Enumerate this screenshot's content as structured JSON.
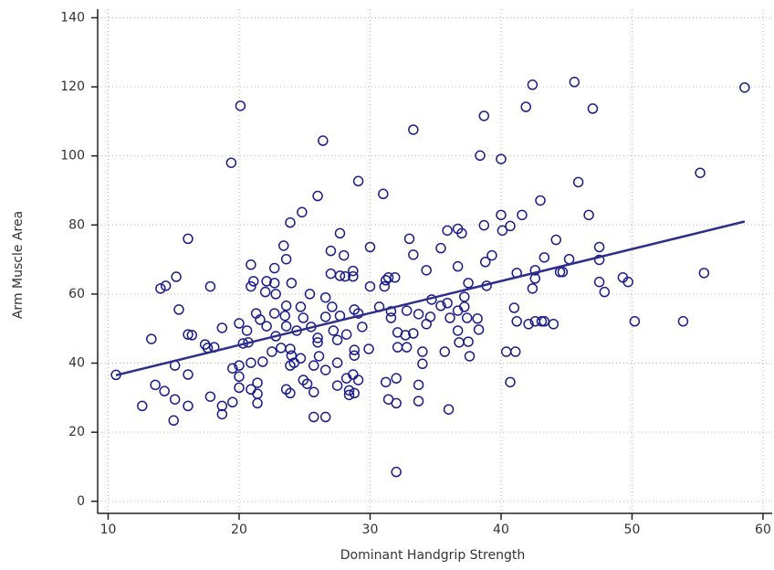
{
  "chart_data": {
    "type": "scatter",
    "x_label": "Dominant Handgrip Strength",
    "y_label": "Arm Muscle Area",
    "xlim": [
      9.2,
      60.7
    ],
    "xticks": [
      10,
      20,
      30,
      40,
      50,
      60
    ],
    "ylim": [
      -3.5,
      142.5
    ],
    "yticks": [
      0,
      20,
      40,
      60,
      80,
      100,
      120,
      140
    ],
    "grid": true,
    "series": [
      {
        "color": "#1c1c8a",
        "x": [
          10.6,
          12.6,
          13.3,
          13.6,
          14.0,
          14.4,
          14.3,
          15.0,
          15.1,
          15.1,
          15.2,
          15.4,
          16.1,
          16.1,
          16.4,
          16.1,
          16.1,
          17.4,
          17.6,
          18.1,
          17.8,
          17.8,
          18.7,
          18.7,
          18.7,
          19.4,
          19.5,
          19.5,
          20.1,
          20.0,
          20.0,
          20.0,
          20.0,
          20.3,
          20.7,
          20.6,
          20.9,
          20.9,
          21.1,
          20.9,
          20.9,
          21.3,
          21.4,
          21.4,
          21.4,
          21.6,
          21.8,
          22.1,
          22.0,
          22.1,
          22.5,
          22.7,
          22.7,
          22.7,
          22.8,
          22.8,
          23.2,
          23.4,
          23.6,
          23.5,
          23.6,
          23.6,
          23.6,
          23.9,
          23.9,
          24.0,
          23.9,
          24.0,
          24.2,
          23.9,
          24.4,
          24.7,
          24.7,
          24.8,
          24.9,
          24.9,
          25.2,
          25.4,
          25.5,
          25.7,
          25.7,
          25.7,
          26.0,
          26.0,
          26.0,
          26.1,
          26.4,
          26.6,
          26.6,
          26.6,
          26.6,
          27.0,
          27.0,
          27.1,
          27.2,
          27.5,
          27.5,
          27.7,
          27.7,
          27.7,
          27.5,
          28.0,
          28.1,
          28.2,
          28.2,
          28.4,
          28.4,
          28.7,
          28.7,
          28.7,
          28.8,
          28.8,
          28.8,
          28.8,
          29.1,
          29.1,
          29.1,
          29.4,
          29.9,
          30.0,
          30.0,
          30.7,
          31.0,
          31.1,
          31.2,
          31.4,
          31.2,
          31.4,
          31.6,
          31.6,
          31.9,
          32.0,
          32.0,
          32.1,
          32.1,
          32.0,
          32.7,
          32.8,
          32.8,
          33.0,
          33.3,
          33.3,
          33.3,
          33.7,
          33.7,
          33.7,
          34.0,
          34.0,
          34.3,
          34.3,
          34.6,
          34.7,
          35.4,
          35.4,
          35.7,
          35.9,
          35.9,
          36.0,
          36.1,
          36.7,
          36.7,
          36.7,
          36.7,
          36.8,
          37.0,
          37.2,
          37.2,
          37.4,
          37.5,
          37.5,
          37.6,
          38.2,
          38.3,
          38.4,
          38.7,
          38.7,
          38.8,
          38.9,
          39.3,
          40.0,
          40.0,
          40.1,
          40.4,
          40.7,
          40.7,
          41.0,
          41.2,
          41.2,
          41.1,
          41.6,
          41.9,
          42.1,
          42.4,
          42.4,
          42.6,
          42.6,
          42.6,
          43.0,
          43.1,
          43.3,
          43.3,
          44.0,
          44.2,
          44.5,
          44.7,
          45.2,
          45.6,
          45.9,
          46.7,
          47.0,
          47.5,
          47.5,
          47.5,
          47.9,
          49.3,
          49.7,
          50.2,
          53.9,
          55.2,
          55.5,
          58.6
        ],
        "y": [
          36.6,
          27.6,
          47.0,
          33.7,
          61.6,
          62.4,
          31.9,
          23.4,
          29.5,
          39.3,
          65.0,
          55.5,
          76.0,
          48.3,
          48.1,
          36.7,
          27.6,
          45.4,
          44.4,
          44.6,
          62.2,
          30.3,
          27.6,
          25.2,
          50.2,
          98.0,
          38.5,
          28.7,
          114.5,
          51.5,
          39.3,
          36.1,
          32.9,
          45.7,
          46.0,
          49.4,
          68.5,
          62.2,
          63.7,
          40.1,
          32.4,
          54.4,
          34.3,
          31.1,
          28.4,
          52.6,
          40.4,
          63.7,
          60.6,
          50.7,
          43.3,
          54.4,
          67.5,
          63.2,
          60.0,
          47.8,
          44.4,
          74.0,
          70.1,
          53.7,
          50.7,
          56.6,
          32.4,
          31.3,
          80.7,
          63.2,
          44.1,
          42.2,
          40.1,
          39.3,
          49.4,
          56.3,
          41.4,
          83.7,
          53.1,
          35.1,
          34.0,
          60.0,
          50.5,
          39.3,
          31.6,
          24.4,
          88.4,
          47.3,
          46.0,
          42.0,
          104.4,
          53.4,
          59.0,
          38.0,
          24.4,
          72.5,
          65.9,
          56.3,
          49.4,
          40.1,
          33.5,
          77.6,
          65.3,
          53.7,
          46.7,
          71.2,
          65.1,
          48.3,
          35.6,
          32.1,
          30.8,
          66.7,
          65.1,
          36.7,
          55.5,
          43.8,
          42.2,
          31.3,
          92.7,
          35.1,
          54.4,
          50.5,
          44.1,
          73.6,
          62.2,
          56.3,
          89.0,
          62.2,
          64.0,
          64.8,
          34.5,
          29.5,
          55.0,
          53.1,
          64.8,
          35.6,
          28.4,
          48.9,
          44.6,
          8.5,
          48.1,
          44.6,
          55.2,
          76.0,
          107.6,
          71.4,
          48.6,
          54.2,
          33.7,
          29.0,
          43.3,
          39.8,
          66.9,
          51.3,
          53.4,
          58.4,
          73.3,
          56.6,
          43.3,
          78.4,
          57.4,
          26.6,
          53.1,
          78.9,
          68.0,
          55.2,
          49.4,
          46.0,
          77.6,
          59.2,
          56.3,
          53.1,
          63.2,
          46.2,
          42.0,
          52.9,
          49.7,
          100.1,
          111.6,
          79.9,
          69.3,
          62.4,
          71.2,
          99.1,
          82.9,
          78.4,
          43.3,
          79.7,
          34.5,
          56.0,
          66.1,
          52.1,
          43.3,
          82.9,
          114.2,
          51.3,
          120.6,
          61.6,
          52.1,
          66.9,
          64.5,
          87.1,
          52.1,
          70.6,
          52.1,
          51.3,
          75.7,
          66.4,
          66.4,
          70.1,
          121.4,
          92.4,
          82.9,
          113.7,
          73.6,
          69.9,
          63.5,
          60.6,
          64.8,
          63.5,
          52.1,
          52.1,
          95.1,
          66.1,
          119.8
        ]
      }
    ],
    "fit_line": {
      "color": "#2e2e8c",
      "x": [
        10.6,
        58.6
      ],
      "y": [
        36.5,
        81.0
      ]
    }
  }
}
